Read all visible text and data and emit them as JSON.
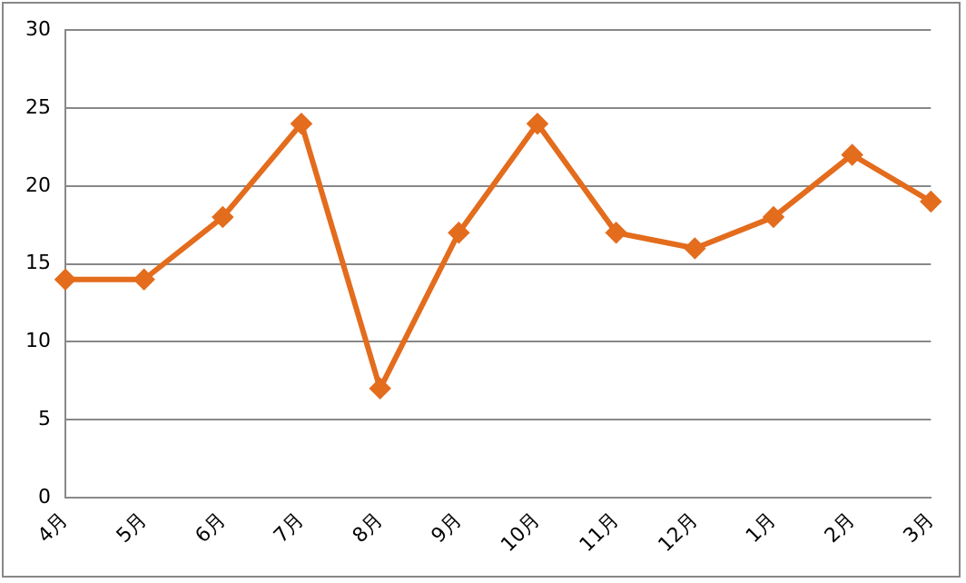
{
  "chart_data": {
    "type": "line",
    "categories": [
      "4月",
      "5月",
      "6月",
      "7月",
      "8月",
      "9月",
      "10月",
      "11月",
      "12月",
      "1月",
      "2月",
      "3月"
    ],
    "series": [
      {
        "color": "#e36c1d",
        "values": [
          14,
          14,
          18,
          24,
          7,
          17,
          24,
          17,
          16,
          18,
          22,
          19
        ]
      }
    ],
    "ylim": [
      0,
      30
    ],
    "yticks": [
      0,
      5,
      10,
      15,
      20,
      25,
      30
    ],
    "grid": "y",
    "legend": false,
    "marker": "diamond",
    "line_style": "solid"
  }
}
